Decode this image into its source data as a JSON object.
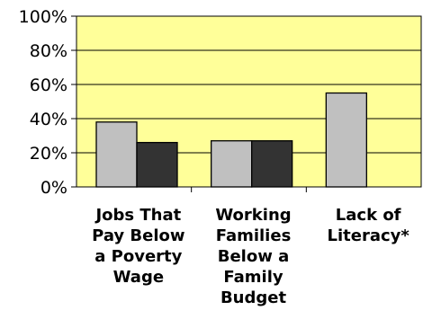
{
  "chart_data": {
    "type": "bar",
    "categories": [
      [
        "Jobs That",
        "Pay Below",
        "a Poverty",
        "Wage"
      ],
      [
        "Working",
        "Families",
        "Below a",
        "Family",
        "Budget"
      ],
      [
        "Lack of",
        "Literacy*"
      ]
    ],
    "series": [
      {
        "color": "#c0c0c0",
        "values": [
          38,
          27,
          55
        ]
      },
      {
        "color": "#333333",
        "values": [
          26,
          27,
          null
        ]
      }
    ],
    "ylim": [
      0,
      100
    ],
    "yticks": [
      0,
      20,
      40,
      60,
      80,
      100
    ],
    "ytick_labels": [
      "0%",
      "20%",
      "40%",
      "60%",
      "80%",
      "100%"
    ],
    "title": "",
    "xlabel": "",
    "ylabel": "",
    "grid": true,
    "legend": "none",
    "plot_background": "#ffff99"
  }
}
